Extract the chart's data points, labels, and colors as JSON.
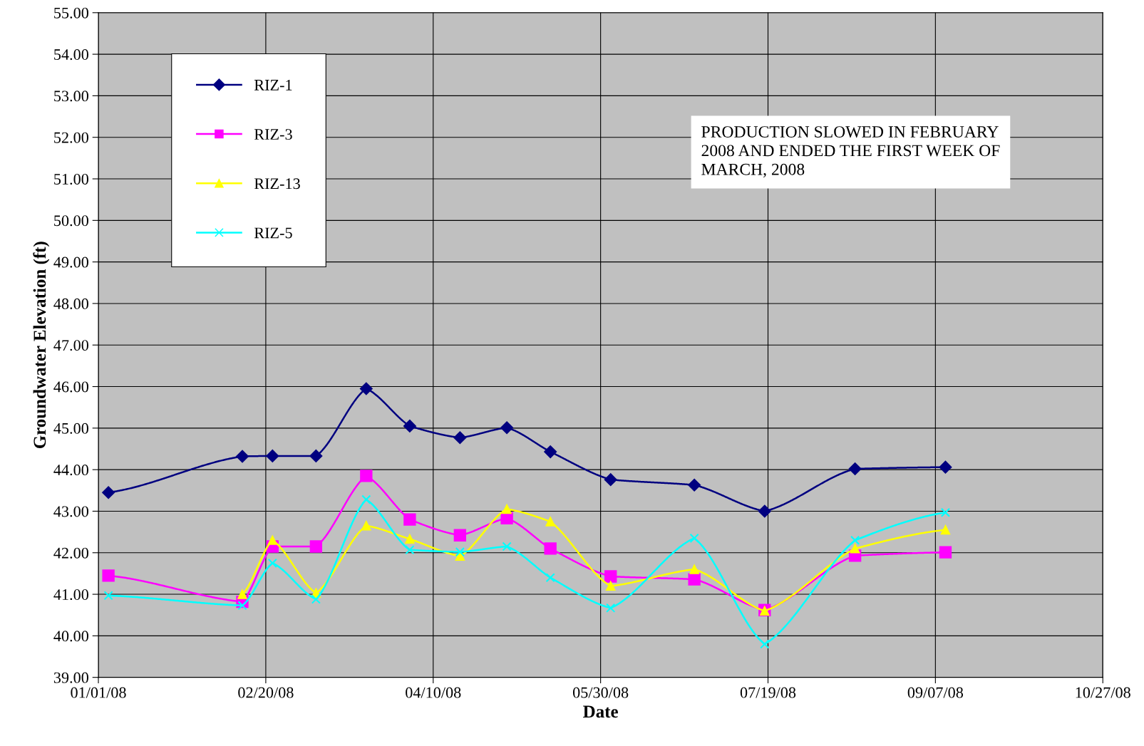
{
  "chart_data": {
    "type": "line",
    "xlabel": "Date",
    "ylabel": "Groundwater Elevation (ft)",
    "x": [
      "2008-01-04",
      "2008-02-13",
      "2008-02-22",
      "2008-03-06",
      "2008-03-21",
      "2008-04-03",
      "2008-04-18",
      "2008-05-02",
      "2008-05-15",
      "2008-06-02",
      "2008-06-27",
      "2008-07-18",
      "2008-08-14",
      "2008-09-10"
    ],
    "series": [
      {
        "name": "RIZ-1",
        "color": "#000080",
        "marker": "diamond",
        "values": [
          43.45,
          44.32,
          44.33,
          44.33,
          45.95,
          45.05,
          44.77,
          45.01,
          44.43,
          43.76,
          43.63,
          43.0,
          44.02,
          44.06
        ]
      },
      {
        "name": "RIZ-3",
        "color": "#ff00ff",
        "marker": "square",
        "values": [
          41.45,
          40.82,
          42.15,
          42.15,
          43.85,
          42.8,
          42.42,
          42.83,
          42.1,
          41.43,
          41.36,
          40.62,
          41.93,
          42.01
        ]
      },
      {
        "name": "RIZ-13",
        "color": "#ffff00",
        "marker": "triangle",
        "values": [
          null,
          41.0,
          42.3,
          41.03,
          42.65,
          42.33,
          41.92,
          43.05,
          42.75,
          41.2,
          41.6,
          40.6,
          42.1,
          42.55
        ]
      },
      {
        "name": "RIZ-5",
        "color": "#00ffff",
        "marker": "cross",
        "values": [
          40.97,
          40.73,
          41.75,
          40.88,
          43.28,
          42.07,
          42.02,
          42.15,
          41.4,
          40.67,
          42.35,
          39.8,
          42.3,
          42.97
        ]
      }
    ],
    "xlim": [
      "2008-01-01",
      "2008-10-27"
    ],
    "xticks": [
      {
        "value": "2008-01-01",
        "label": "01/01/08"
      },
      {
        "value": "2008-02-20",
        "label": "02/20/08"
      },
      {
        "value": "2008-04-10",
        "label": "04/10/08"
      },
      {
        "value": "2008-05-30",
        "label": "05/30/08"
      },
      {
        "value": "2008-07-19",
        "label": "07/19/08"
      },
      {
        "value": "2008-09-07",
        "label": "09/07/08"
      },
      {
        "value": "2008-10-27",
        "label": "10/27/08"
      }
    ],
    "ylim": [
      39,
      55
    ],
    "yticks": [
      {
        "value": 39,
        "label": "39.00"
      },
      {
        "value": 40,
        "label": "40.00"
      },
      {
        "value": 41,
        "label": "41.00"
      },
      {
        "value": 42,
        "label": "42.00"
      },
      {
        "value": 43,
        "label": "43.00"
      },
      {
        "value": 44,
        "label": "44.00"
      },
      {
        "value": 45,
        "label": "45.00"
      },
      {
        "value": 46,
        "label": "46.00"
      },
      {
        "value": 47,
        "label": "47.00"
      },
      {
        "value": 48,
        "label": "48.00"
      },
      {
        "value": 49,
        "label": "49.00"
      },
      {
        "value": 50,
        "label": "50.00"
      },
      {
        "value": 51,
        "label": "51.00"
      },
      {
        "value": 52,
        "label": "52.00"
      },
      {
        "value": 53,
        "label": "53.00"
      },
      {
        "value": 54,
        "label": "54.00"
      },
      {
        "value": 55,
        "label": "55.00"
      }
    ],
    "grid": true,
    "legend": "top left",
    "line_style": "solid",
    "annotations": [
      "PRODUCTION SLOWED IN FEBRUARY 2008 AND ENDED THE FIRST WEEK OF MARCH, 2008"
    ]
  }
}
